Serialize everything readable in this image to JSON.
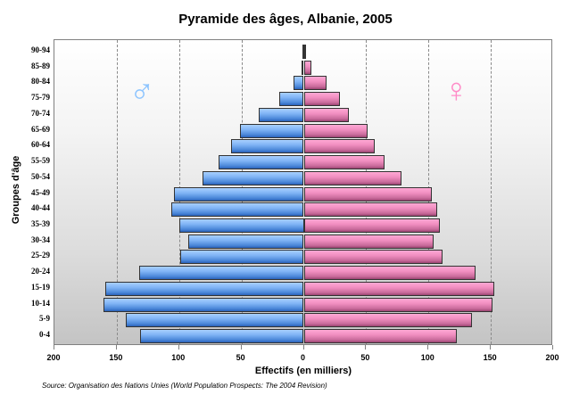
{
  "title": "Pyramide des âges, Albanie, 2005",
  "ylabel": "Groupes d'âge",
  "xlabel": "Effectifs (en milliers)",
  "source": "Source: Organisation des Nations Unies (World Population Prospects: The 2004 Revision)",
  "symbols": {
    "male": "♂",
    "female": "♀"
  },
  "colors": {
    "male": "#7fb3f5",
    "female": "#f08ec0",
    "male_symbol": "#8cc4ff",
    "female_symbol": "#ff8cc8"
  },
  "chart_data": {
    "type": "bar",
    "subtype": "population-pyramid",
    "title": "Pyramide des âges, Albanie, 2005",
    "xlabel": "Effectifs (en milliers)",
    "ylabel": "Groupes d'âge",
    "categories": [
      "0-4",
      "5-9",
      "10-14",
      "15-19",
      "20-24",
      "25-29",
      "30-34",
      "35-39",
      "40-44",
      "45-49",
      "50-54",
      "55-59",
      "60-64",
      "65-69",
      "70-74",
      "75-79",
      "80-84",
      "85-89",
      "90-94"
    ],
    "series": [
      {
        "name": "Hommes",
        "values": [
          131,
          143,
          161,
          159,
          132,
          99,
          93,
          100,
          106,
          104,
          81,
          68,
          58,
          51,
          36,
          20,
          8,
          2,
          1
        ]
      },
      {
        "name": "Femmes",
        "values": [
          123,
          135,
          151,
          153,
          138,
          111,
          104,
          109,
          107,
          103,
          78,
          65,
          57,
          51,
          36,
          29,
          18,
          6,
          1
        ]
      }
    ],
    "xlim": [
      -200,
      200
    ],
    "xticks": [
      "200",
      "150",
      "100",
      "50",
      "0",
      "50",
      "100",
      "150",
      "200"
    ],
    "grid": true,
    "legend": "gender symbols (♂ left, ♀ right)"
  }
}
